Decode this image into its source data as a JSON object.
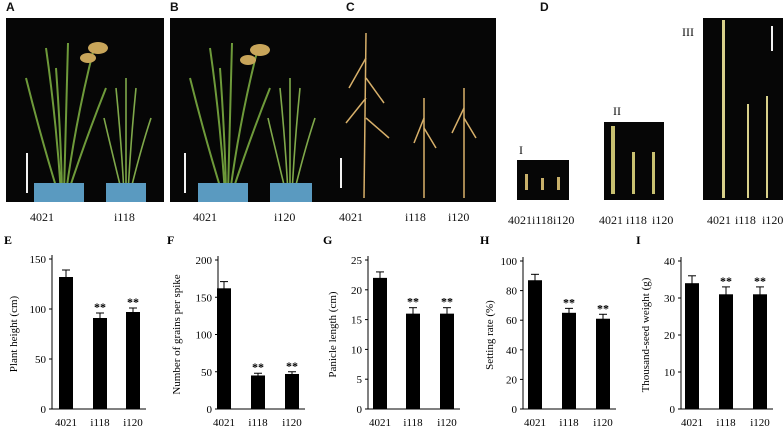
{
  "photo_panels": {
    "A": {
      "label": "A",
      "captions": [
        "4021",
        "i118"
      ]
    },
    "B": {
      "label": "B",
      "captions": [
        "4021",
        "i120"
      ]
    },
    "C": {
      "label": "C",
      "captions": [
        "4021",
        "i118",
        "i120"
      ]
    },
    "D": {
      "label": "D",
      "sub": [
        {
          "roman": "I",
          "captions": [
            "4021",
            "i118",
            "i120"
          ]
        },
        {
          "roman": "II",
          "captions": [
            "4021",
            "i118",
            "i120"
          ]
        },
        {
          "roman": "III",
          "captions": [
            "4021",
            "i118",
            "i120"
          ]
        }
      ]
    }
  },
  "colors": {
    "bar": "#000000",
    "photo_bg": "#060606",
    "plant_green": "#6e9a3a",
    "grain_tan": "#d8b06a"
  },
  "chart_data": [
    {
      "panel": "E",
      "type": "bar",
      "ylabel": "Plant height (cm)",
      "categories": [
        "4021",
        "i118",
        "i120"
      ],
      "values": [
        132,
        91,
        97
      ],
      "errors": [
        7,
        5,
        4
      ],
      "ylim": [
        0,
        150
      ],
      "yticks": [
        0,
        50,
        100,
        150
      ],
      "significance": [
        "",
        "**",
        "**"
      ]
    },
    {
      "panel": "F",
      "type": "bar",
      "ylabel": "Number of grains per spike",
      "categories": [
        "4021",
        "i118",
        "i120"
      ],
      "values": [
        162,
        45,
        47
      ],
      "errors": [
        9,
        3,
        3
      ],
      "ylim": [
        0,
        200
      ],
      "yticks": [
        0,
        50,
        100,
        150,
        200
      ],
      "significance": [
        "",
        "**",
        "**"
      ]
    },
    {
      "panel": "G",
      "type": "bar",
      "ylabel": "Panicle length (cm)",
      "categories": [
        "4021",
        "i118",
        "i120"
      ],
      "values": [
        22,
        16,
        16
      ],
      "errors": [
        1,
        1,
        1
      ],
      "ylim": [
        0,
        25
      ],
      "yticks": [
        0,
        5,
        10,
        15,
        20,
        25
      ],
      "significance": [
        "",
        "**",
        "**"
      ]
    },
    {
      "panel": "H",
      "type": "bar",
      "ylabel": "Setting rate (%)",
      "categories": [
        "4021",
        "i118",
        "i120"
      ],
      "values": [
        87,
        65,
        61
      ],
      "errors": [
        4,
        3,
        3
      ],
      "ylim": [
        0,
        100
      ],
      "yticks": [
        0,
        20,
        40,
        60,
        80,
        100
      ],
      "significance": [
        "",
        "**",
        "**"
      ]
    },
    {
      "panel": "I",
      "type": "bar",
      "ylabel": "Thousand-seed weight (g)",
      "categories": [
        "4021",
        "i118",
        "i120"
      ],
      "values": [
        34,
        31,
        31
      ],
      "errors": [
        2,
        2,
        2
      ],
      "ylim": [
        0,
        40
      ],
      "yticks": [
        0,
        10,
        20,
        30,
        40
      ],
      "significance": [
        "",
        "**",
        "**"
      ]
    }
  ]
}
